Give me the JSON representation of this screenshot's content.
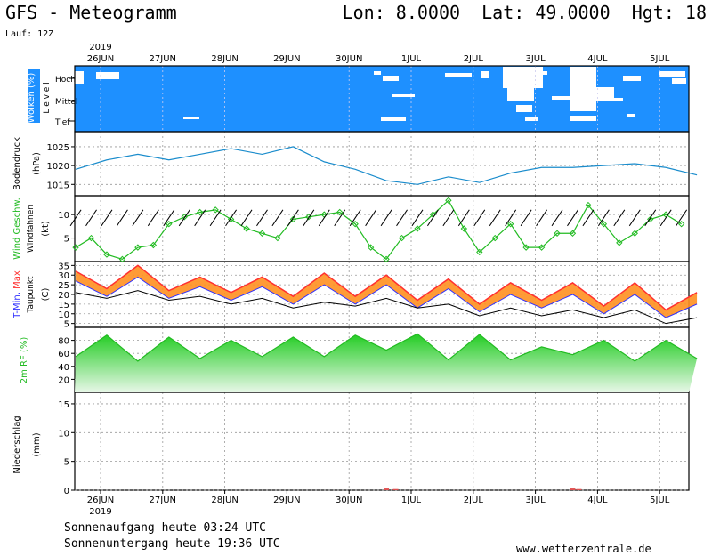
{
  "header": {
    "title": "GFS - Meteogramm",
    "coords": "Lon: 8.0000  Lat: 49.0000  Hgt: 18",
    "run": "Lauf: 12Z"
  },
  "x_axis": {
    "year": "2019",
    "dates": [
      "26JUN",
      "27JUN",
      "28JUN",
      "29JUN",
      "30JUN",
      "1JUL",
      "2JUL",
      "3JUL",
      "4JUL",
      "5JUL"
    ]
  },
  "footer": {
    "sunrise": "Sonnenaufgang heute 03:24 UTC",
    "sunset": "Sonnenuntergang heute 19:36 UTC",
    "site": "www.wetterzentrale.de"
  },
  "colors": {
    "clouds_bg": "#1e90ff",
    "clouds": "#ffffff",
    "pressure": "#1a8ccc",
    "wind": "#22bb22",
    "tmax": "#ff3030",
    "tmin": "#3030ff",
    "temp_fill": "#ff9020",
    "dewpoint": "#000000",
    "humidity": "#22bb22",
    "precip": "#e05050",
    "grid": "#999999"
  },
  "chart_data": [
    {
      "type": "heatmap",
      "panel": "clouds",
      "ylabel": "Wolken (%)",
      "sublabel": "L e v e l",
      "levels": [
        "Hoch",
        "Mittel",
        "Tief"
      ],
      "note": "cloud cover bands by level, white patches = clear"
    },
    {
      "type": "line",
      "panel": "pressure",
      "ylabel": "Bodendruck",
      "unit": "(hPa)",
      "ylim": [
        1012,
        1029
      ],
      "yticks": [
        1015,
        1020,
        1025
      ],
      "x_days": [
        0,
        0.5,
        1,
        1.5,
        2,
        2.5,
        3,
        3.5,
        4,
        4.5,
        5,
        5.5,
        6,
        6.5,
        7,
        7.5,
        8,
        8.5,
        9,
        9.5,
        10
      ],
      "values": [
        1019,
        1021.5,
        1023,
        1021.5,
        1023,
        1024.5,
        1023,
        1025,
        1021,
        1019,
        1016,
        1015,
        1017,
        1015.5,
        1018,
        1019.5,
        1019.5,
        1020,
        1020.5,
        1019.5,
        1017.5
      ]
    },
    {
      "type": "line",
      "panel": "wind",
      "ylabel": "Wind Geschw.",
      "ylabel2": "Windfahnen",
      "unit": "(kt)",
      "ylim": [
        0,
        14
      ],
      "yticks": [
        5,
        10
      ],
      "x_days": [
        0,
        0.25,
        0.5,
        0.75,
        1,
        1.25,
        1.5,
        1.75,
        2,
        2.25,
        2.5,
        2.75,
        3,
        3.25,
        3.5,
        3.75,
        4,
        4.25,
        4.5,
        4.75,
        5,
        5.25,
        5.5,
        5.75,
        6,
        6.25,
        6.5,
        6.75,
        7,
        7.25,
        7.5,
        7.75,
        8,
        8.25,
        8.5,
        8.75,
        9,
        9.25,
        9.5,
        9.75
      ],
      "values": [
        3,
        5,
        1.5,
        0.5,
        3,
        3.5,
        8,
        9.5,
        10.5,
        11,
        9,
        7,
        6,
        5,
        9,
        9.5,
        10,
        10.5,
        8,
        3,
        0.5,
        5,
        7,
        10,
        13,
        7,
        2,
        5,
        8,
        3,
        3,
        6,
        6,
        12,
        8,
        4,
        6,
        9,
        10,
        8
      ]
    },
    {
      "type": "line",
      "panel": "temperature",
      "ylabel": "T-Min, Max",
      "ylabel2": "Taupunkt",
      "unit": "(C)",
      "ylim": [
        3,
        37
      ],
      "yticks": [
        5,
        10,
        15,
        20,
        25,
        30,
        35
      ],
      "x_days": [
        0,
        0.5,
        1,
        1.5,
        2,
        2.5,
        3,
        3.5,
        4,
        4.5,
        5,
        5.5,
        6,
        6.5,
        7,
        7.5,
        8,
        8.5,
        9,
        9.5,
        10
      ],
      "series": [
        {
          "name": "T-Max",
          "values": [
            30,
            21,
            33,
            20,
            27,
            19,
            27,
            17,
            29,
            17,
            28,
            15,
            26,
            13,
            24,
            15,
            24,
            12,
            24,
            10,
            19
          ]
        },
        {
          "name": "T-Min",
          "values": [
            29,
            21,
            31,
            20,
            26,
            19,
            26,
            17,
            27,
            17,
            27,
            15,
            25,
            13,
            22,
            15,
            22,
            12,
            22,
            10,
            17
          ]
        },
        {
          "name": "Taupunkt",
          "values": [
            21,
            18,
            22,
            17,
            19,
            15,
            18,
            13,
            16,
            14,
            18,
            13,
            15,
            9,
            13,
            9,
            12,
            8,
            12,
            5,
            8
          ]
        }
      ]
    },
    {
      "type": "area",
      "panel": "humidity",
      "ylabel": "2m RF (%)",
      "ylim": [
        0,
        100
      ],
      "yticks": [
        20,
        40,
        60,
        80
      ],
      "x_days": [
        0,
        0.5,
        1,
        1.5,
        2,
        2.5,
        3,
        3.5,
        4,
        4.5,
        5,
        5.5,
        6,
        6.5,
        7,
        7.5,
        8,
        8.5,
        9,
        9.5,
        10
      ],
      "values": [
        55,
        88,
        48,
        85,
        52,
        80,
        55,
        85,
        55,
        88,
        65,
        90,
        50,
        89,
        50,
        70,
        58,
        80,
        48,
        80,
        52
      ]
    },
    {
      "type": "bar",
      "panel": "precipitation",
      "ylabel": "Niederschlag",
      "unit": "(mm)",
      "ylim": [
        0,
        17
      ],
      "yticks": [
        0,
        5,
        10,
        15
      ],
      "x_days": [
        4.6,
        4.75,
        7.6,
        7.7
      ],
      "values": [
        0.3,
        0.2,
        0.3,
        0.2
      ]
    }
  ]
}
